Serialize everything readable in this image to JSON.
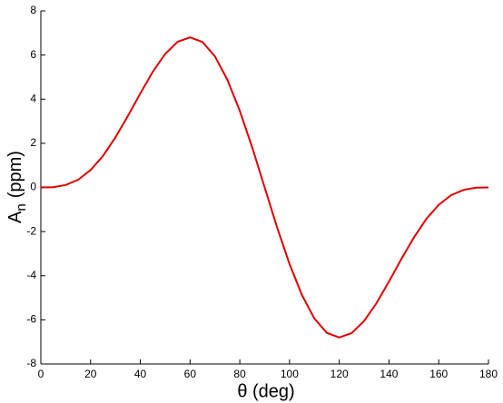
{
  "chart_data": {
    "type": "line",
    "xlabel": "θ (deg)",
    "ylabel": "A",
    "ylabel_sub": "n",
    "ylabel_unit": "(ppm)",
    "x": [
      0,
      5,
      10,
      15,
      20,
      25,
      30,
      35,
      40,
      45,
      50,
      55,
      60,
      65,
      70,
      75,
      80,
      85,
      90,
      95,
      100,
      105,
      110,
      115,
      120,
      125,
      130,
      135,
      140,
      145,
      150,
      155,
      160,
      165,
      170,
      175,
      180
    ],
    "series": [
      {
        "color": "#e00000",
        "values": [
          0,
          0.01,
          0.11,
          0.35,
          0.79,
          1.43,
          2.27,
          3.24,
          4.26,
          5.24,
          6.05,
          6.6,
          6.8,
          6.59,
          5.94,
          4.88,
          3.47,
          1.81,
          0,
          -1.81,
          -3.47,
          -4.88,
          -5.94,
          -6.59,
          -6.8,
          -6.6,
          -6.05,
          -5.24,
          -4.26,
          -3.24,
          -2.27,
          -1.43,
          -0.79,
          -0.35,
          -0.11,
          -0.01,
          0
        ]
      }
    ],
    "xlim": [
      0,
      180
    ],
    "xticks": [
      0,
      20,
      40,
      60,
      80,
      100,
      120,
      140,
      160,
      180
    ],
    "ylim": [
      -8,
      8
    ],
    "yticks": [
      -8,
      -6,
      -4,
      -2,
      0,
      2,
      4,
      6,
      8
    ]
  }
}
